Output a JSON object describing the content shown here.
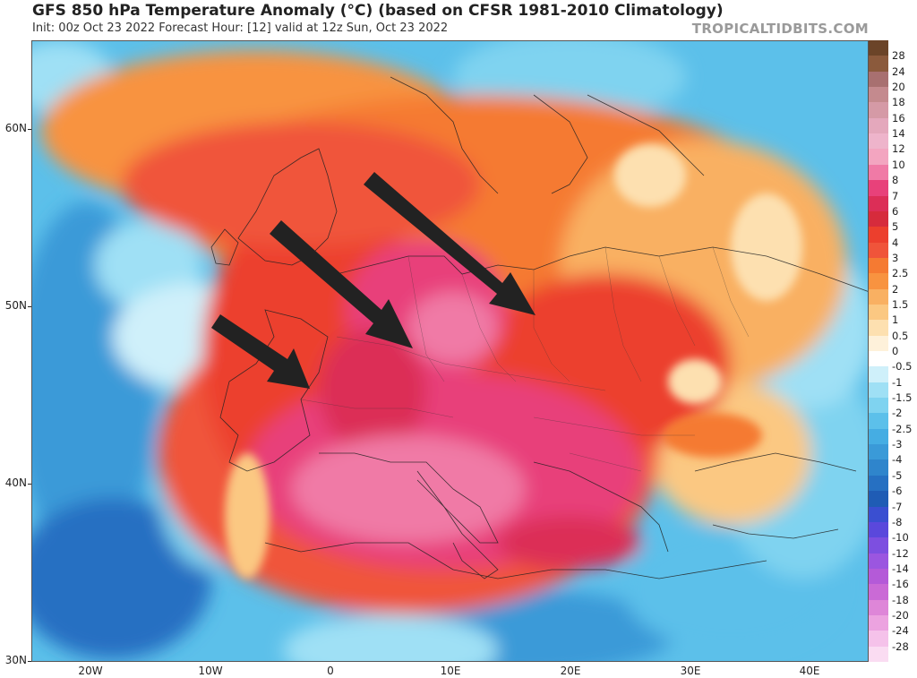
{
  "header": {
    "title": "GFS 850 hPa Temperature Anomaly (°C) (based on CFSR 1981-2010 Climatology)",
    "subtitle": "Init: 00z Oct 23 2022   Forecast Hour: [12]   valid at 12z Sun, Oct 23 2022",
    "brand": "TROPICALTIDBITS.COM"
  },
  "map": {
    "lat_labels": [
      "60N",
      "50N",
      "40N",
      "30N"
    ],
    "lon_labels": [
      "20W",
      "10W",
      "0",
      "10E",
      "20E",
      "30E",
      "40E"
    ],
    "arrows": 3,
    "colors": {
      "deep_warm": "#e8417a",
      "warm": "#f0483a",
      "orange": "#f57a32",
      "light_orange": "#f9b062",
      "neutral": "#fdf6ec",
      "cool": "#7fd3f0",
      "cold": "#3a9ad8",
      "very_cold": "#1f6fc0"
    }
  },
  "colorbar": {
    "levels": [
      {
        "label": "28",
        "color": "#8b5a3c"
      },
      {
        "label": "24",
        "color": "#a87070"
      },
      {
        "label": "20",
        "color": "#c48a8e"
      },
      {
        "label": "18",
        "color": "#d59aa6"
      },
      {
        "label": "16",
        "color": "#e4a8bc"
      },
      {
        "label": "14",
        "color": "#eeb4cb"
      },
      {
        "label": "12",
        "color": "#f3a5c0"
      },
      {
        "label": "10",
        "color": "#f07aa6"
      },
      {
        "label": "8",
        "color": "#e8417a"
      },
      {
        "label": "7",
        "color": "#dc2e57"
      },
      {
        "label": "6",
        "color": "#d62b3c"
      },
      {
        "label": "5",
        "color": "#ec3f2d"
      },
      {
        "label": "4",
        "color": "#f0543a"
      },
      {
        "label": "3",
        "color": "#f57a32"
      },
      {
        "label": "2.5",
        "color": "#f89340"
      },
      {
        "label": "2",
        "color": "#f9b062"
      },
      {
        "label": "1.5",
        "color": "#fbc882"
      },
      {
        "label": "1",
        "color": "#fde0b0"
      },
      {
        "label": "0.5",
        "color": "#fef1da"
      },
      {
        "label": "0",
        "color": "#ffffff"
      },
      {
        "label": "-0.5",
        "color": "#cff0fa"
      },
      {
        "label": "-1",
        "color": "#9fe0f5"
      },
      {
        "label": "-1.5",
        "color": "#7fd3f0"
      },
      {
        "label": "-2",
        "color": "#5cc0ea"
      },
      {
        "label": "-2.5",
        "color": "#45ade3"
      },
      {
        "label": "-3",
        "color": "#3a9ad8"
      },
      {
        "label": "-4",
        "color": "#2f85cc"
      },
      {
        "label": "-5",
        "color": "#2670c2"
      },
      {
        "label": "-6",
        "color": "#1f5cb5"
      },
      {
        "label": "-7",
        "color": "#3a4fd1"
      },
      {
        "label": "-8",
        "color": "#5a48dc"
      },
      {
        "label": "-10",
        "color": "#7d4fe0"
      },
      {
        "label": "-12",
        "color": "#9b56e0"
      },
      {
        "label": "-14",
        "color": "#b45ad8"
      },
      {
        "label": "-16",
        "color": "#ca6ad6"
      },
      {
        "label": "-18",
        "color": "#de86d8"
      },
      {
        "label": "-20",
        "color": "#eca3e0"
      },
      {
        "label": "-24",
        "color": "#f5c2ea"
      },
      {
        "label": "-28",
        "color": "#fadcf2"
      }
    ]
  }
}
